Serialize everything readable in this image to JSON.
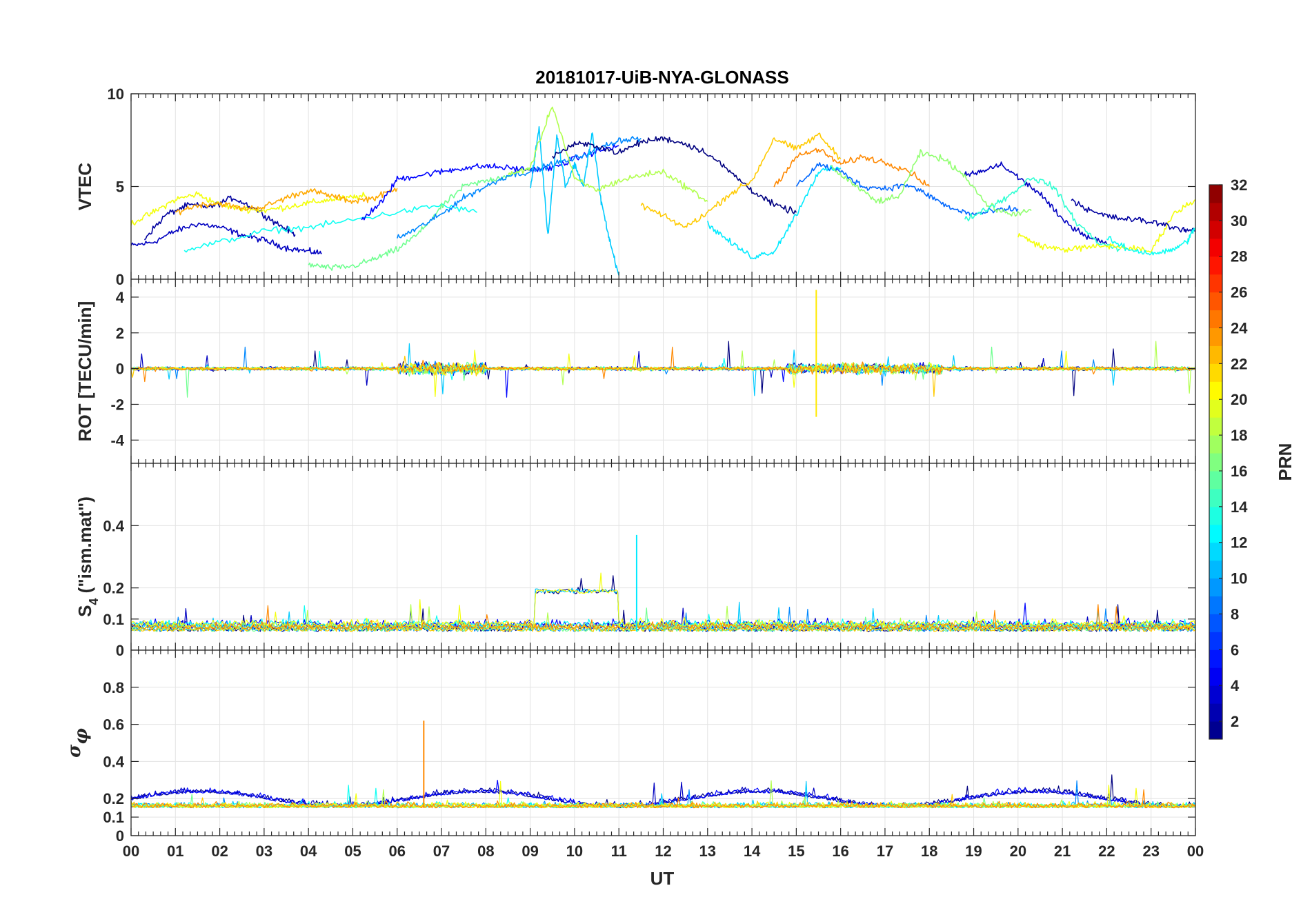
{
  "title": "20181017-UiB-NYA-GLONASS",
  "colormap": "jet",
  "colorbar": {
    "label": "PRN",
    "range": [
      1,
      32
    ],
    "ticks": [
      2,
      4,
      6,
      8,
      10,
      12,
      14,
      16,
      18,
      20,
      22,
      24,
      26,
      28,
      30,
      32
    ]
  },
  "chart_data": {
    "type": "line",
    "xlabel": "UT",
    "xlim": [
      0,
      24
    ],
    "x_ticks": [
      "00",
      "01",
      "02",
      "03",
      "04",
      "05",
      "06",
      "07",
      "08",
      "09",
      "10",
      "11",
      "12",
      "13",
      "14",
      "15",
      "16",
      "17",
      "18",
      "19",
      "20",
      "21",
      "22",
      "23",
      "00"
    ],
    "grid": true,
    "panels": [
      {
        "id": "vtec",
        "ylabel": "VTEC",
        "ylim": [
          0,
          10
        ],
        "yticks": [
          0,
          5,
          10
        ],
        "series": [
          {
            "prn": 3,
            "x": [
              0,
              0.5,
              1,
              1.5,
              2,
              2.5,
              3,
              3.5,
              4,
              4.3
            ],
            "y": [
              1.8,
              2.0,
              2.6,
              3.0,
              2.8,
              2.4,
              2.1,
              1.7,
              1.5,
              1.4
            ]
          },
          {
            "prn": 2,
            "x": [
              0.3,
              0.8,
              1.3,
              1.8,
              2.3,
              2.8,
              3.3,
              3.7
            ],
            "y": [
              2.2,
              3.5,
              4.0,
              3.9,
              4.4,
              3.8,
              3.0,
              2.4
            ]
          },
          {
            "prn": 20,
            "x": [
              0,
              0.5,
              1,
              1.5,
              2,
              2.5,
              3,
              3.5,
              4,
              4.5,
              5,
              5.3
            ],
            "y": [
              3.0,
              3.6,
              4.3,
              4.6,
              4.0,
              3.8,
              3.7,
              3.9,
              4.1,
              4.3,
              4.4,
              4.5
            ]
          },
          {
            "prn": 23,
            "x": [
              1.0,
              1.5,
              2.0,
              2.5,
              3.0,
              3.5,
              4.0,
              4.5,
              5.0,
              5.5,
              6.0
            ],
            "y": [
              3.6,
              4.0,
              4.1,
              3.8,
              3.9,
              4.4,
              4.8,
              4.5,
              4.2,
              4.4,
              4.9
            ]
          },
          {
            "prn": 13,
            "x": [
              1.2,
              2.0,
              3.0,
              4.0,
              5.0,
              6.0,
              7.0,
              7.8
            ],
            "y": [
              1.6,
              2.0,
              2.6,
              2.8,
              3.2,
              3.6,
              4.0,
              3.6
            ]
          },
          {
            "prn": 16,
            "x": [
              4.0,
              4.5,
              5.0,
              5.5,
              6.0,
              6.5,
              7.0,
              7.5,
              8.0,
              8.5,
              9.0
            ],
            "y": [
              0.8,
              0.6,
              0.7,
              1.1,
              1.6,
              2.5,
              3.9,
              5.0,
              5.3,
              5.6,
              6.0
            ]
          },
          {
            "prn": 5,
            "x": [
              5.2,
              5.7,
              6.0,
              6.5,
              7.0,
              7.5,
              8.0,
              8.5,
              9.0,
              9.5,
              10.0,
              10.5,
              11.0
            ],
            "y": [
              3.2,
              4.3,
              5.4,
              5.6,
              5.8,
              6.0,
              6.1,
              6.0,
              5.9,
              6.0,
              6.5,
              6.9,
              7.2
            ]
          },
          {
            "prn": 9,
            "x": [
              6.0,
              6.5,
              7.0,
              7.5,
              8.0,
              8.5,
              9.0,
              9.5,
              10.0,
              10.5,
              11.0,
              11.5
            ],
            "y": [
              2.2,
              2.8,
              3.5,
              4.4,
              5.0,
              5.6,
              5.8,
              6.2,
              6.5,
              7.0,
              7.5,
              7.6
            ]
          },
          {
            "prn": 11,
            "x": [
              9.0,
              9.2,
              9.4,
              9.6,
              9.8,
              10.0,
              10.2,
              10.4,
              10.6,
              10.8,
              11.0
            ],
            "y": [
              4.8,
              8.2,
              2.3,
              7.8,
              5.0,
              6.2,
              5.0,
              7.9,
              4.2,
              2.0,
              0.2
            ]
          },
          {
            "prn": 18,
            "x": [
              8.5,
              9.0,
              9.5,
              10.0,
              10.5,
              11.0,
              11.5,
              12.0,
              12.5,
              13.0
            ],
            "y": [
              5.6,
              6.0,
              9.4,
              5.4,
              4.8,
              5.3,
              5.6,
              5.8,
              5.0,
              4.2
            ]
          },
          {
            "prn": 1,
            "x": [
              9.5,
              10.0,
              10.5,
              11.0,
              11.5,
              12.0,
              12.5,
              13.0,
              13.5,
              14.0,
              14.5,
              15.0
            ],
            "y": [
              6.6,
              7.3,
              7.2,
              6.8,
              7.4,
              7.6,
              7.3,
              6.8,
              5.8,
              4.8,
              4.0,
              3.6
            ]
          },
          {
            "prn": 22,
            "x": [
              11.5,
              12.0,
              12.5,
              13.0,
              13.5,
              14.0,
              14.5,
              15.0,
              15.5,
              16.0
            ],
            "y": [
              4.0,
              3.4,
              2.8,
              3.6,
              4.6,
              5.3,
              7.6,
              7.0,
              7.8,
              6.5
            ]
          },
          {
            "prn": 24,
            "x": [
              14.5,
              15.0,
              15.5,
              16.0,
              16.5,
              17.0,
              17.5,
              18.0
            ],
            "y": [
              5.0,
              6.6,
              7.0,
              6.2,
              6.6,
              6.3,
              5.9,
              5.0
            ]
          },
          {
            "prn": 12,
            "x": [
              13.0,
              13.5,
              14.0,
              14.5,
              15.0,
              15.5,
              16.0
            ],
            "y": [
              3.0,
              2.0,
              1.2,
              1.5,
              3.5,
              5.8,
              6.0
            ]
          },
          {
            "prn": 8,
            "x": [
              15.0,
              15.5,
              16.0,
              16.5,
              17.0,
              17.5,
              18.0,
              18.5,
              19.0,
              19.5,
              20.0
            ],
            "y": [
              5.0,
              6.2,
              5.8,
              5.0,
              4.9,
              5.1,
              4.5,
              3.8,
              3.5,
              3.7,
              3.8
            ]
          },
          {
            "prn": 17,
            "x": [
              15.8,
              16.3,
              16.8,
              17.3,
              17.8,
              18.3,
              18.8,
              19.3,
              19.8,
              20.3
            ],
            "y": [
              6.0,
              5.1,
              4.2,
              4.4,
              6.8,
              6.5,
              5.6,
              4.0,
              3.5,
              3.7
            ]
          },
          {
            "prn": 3,
            "x": [
              18.8,
              19.2,
              19.6,
              20.0,
              20.5,
              21.0,
              21.5,
              22.0
            ],
            "y": [
              5.6,
              5.8,
              6.2,
              5.5,
              4.6,
              3.2,
              2.4,
              1.9
            ]
          },
          {
            "prn": 14,
            "x": [
              18.8,
              19.3,
              19.8,
              20.3,
              20.8,
              21.3,
              21.8,
              22.3
            ],
            "y": [
              3.2,
              3.8,
              4.5,
              5.5,
              5.0,
              3.1,
              2.0,
              1.6
            ]
          },
          {
            "prn": 20,
            "x": [
              20.0,
              20.5,
              21.0,
              21.5,
              22.0,
              22.5,
              23.0,
              23.5,
              24.0
            ],
            "y": [
              2.4,
              1.8,
              1.6,
              1.7,
              1.8,
              1.7,
              1.5,
              3.5,
              4.3
            ]
          },
          {
            "prn": 2,
            "x": [
              21.2,
              21.7,
              22.2,
              22.7,
              23.2,
              23.7,
              24.0
            ],
            "y": [
              4.3,
              3.6,
              3.3,
              3.2,
              3.0,
              2.7,
              2.6
            ]
          },
          {
            "prn": 13,
            "x": [
              22.0,
              22.5,
              23.0,
              23.4,
              23.8,
              24.0
            ],
            "y": [
              2.2,
              1.6,
              1.4,
              1.5,
              2.0,
              2.8
            ]
          }
        ]
      },
      {
        "id": "rot",
        "ylabel": "ROT [TECU/min]",
        "ylim": [
          -5.3,
          5
        ],
        "yticks": [
          -4,
          -2,
          0,
          2,
          4
        ],
        "description_values": {
          "baseline": 0,
          "max_spike": 4.4,
          "min_spike": -2.7,
          "spike_time_ut": 15.45
        }
      },
      {
        "id": "s4",
        "ylabel": "S4 (\"ism.mat\")",
        "ylabel_main": "S",
        "ylabel_sub": "4",
        "ylabel_rest": " (\"ism.mat\")",
        "ylim": [
          0,
          0.6
        ],
        "yticks": [
          0,
          0.1,
          0.2,
          0.4
        ],
        "description_values": {
          "baseline": 0.06,
          "max": 0.37,
          "plateau_ut": [
            9.1,
            11.0
          ],
          "plateau_value": 0.19
        }
      },
      {
        "id": "sigma",
        "ylabel": "σφ",
        "ylabel_main": "σ",
        "ylabel_sub": "φ",
        "ylim": [
          0,
          1
        ],
        "yticks": [
          0,
          0.1,
          0.2,
          0.4,
          0.6,
          0.8
        ],
        "description_values": {
          "baseline": 0.15,
          "max": 0.62,
          "max_time_ut": 6.6
        }
      }
    ]
  }
}
